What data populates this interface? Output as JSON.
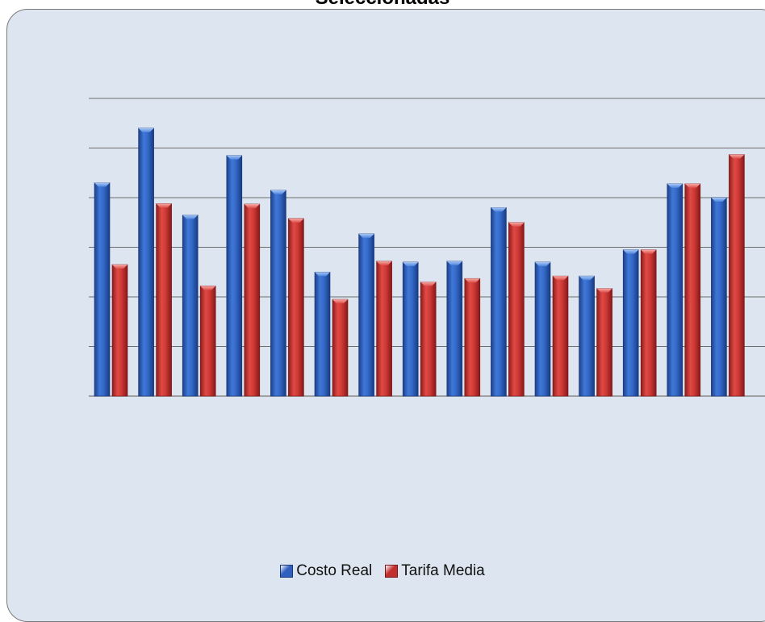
{
  "chart_data": {
    "type": "bar",
    "title": "Seleccionadas",
    "ylim": [
      0,
      6
    ],
    "grid": true,
    "legend_position": "bottom",
    "series": [
      {
        "name": "Costo Real",
        "color": "#2f5fbf",
        "values": [
          4.3,
          5.4,
          3.65,
          4.85,
          4.15,
          2.5,
          3.27,
          2.7,
          2.72,
          3.8,
          2.7,
          2.42,
          2.95,
          4.28,
          4.0
        ]
      },
      {
        "name": "Tarifa Media",
        "color": "#c0302f",
        "values": [
          2.65,
          3.88,
          2.22,
          3.87,
          3.58,
          1.95,
          2.72,
          2.3,
          2.37,
          3.5,
          2.42,
          2.17,
          2.95,
          4.28,
          4.87
        ]
      }
    ]
  }
}
